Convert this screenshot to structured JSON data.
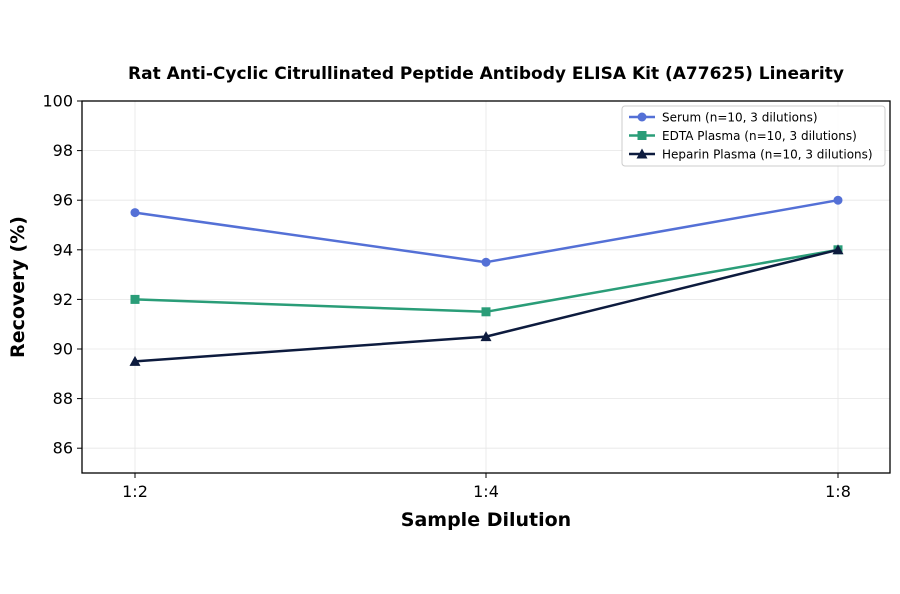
{
  "chart_data": {
    "type": "line",
    "title": "Rat Anti-Cyclic Citrullinated Peptide Antibody ELISA Kit (A77625) Linearity",
    "xlabel": "Sample Dilution",
    "ylabel": "Recovery (%)",
    "categories": [
      "1:2",
      "1:4",
      "1:8"
    ],
    "ylim": [
      85,
      100
    ],
    "yticks": [
      86,
      88,
      90,
      92,
      94,
      96,
      98,
      100
    ],
    "grid": true,
    "legend_position": "top-right",
    "series": [
      {
        "name": "Serum (n=10, 3 dilutions)",
        "values": [
          95.5,
          93.5,
          96.0
        ],
        "color": "#5470d6",
        "marker": "circle"
      },
      {
        "name": "EDTA Plasma (n=10, 3 dilutions)",
        "values": [
          92.0,
          91.5,
          94.0
        ],
        "color": "#2a9d78",
        "marker": "square"
      },
      {
        "name": "Heparin Plasma (n=10, 3 dilutions)",
        "values": [
          89.5,
          90.5,
          94.0
        ],
        "color": "#0d1b3e",
        "marker": "triangle"
      }
    ]
  }
}
